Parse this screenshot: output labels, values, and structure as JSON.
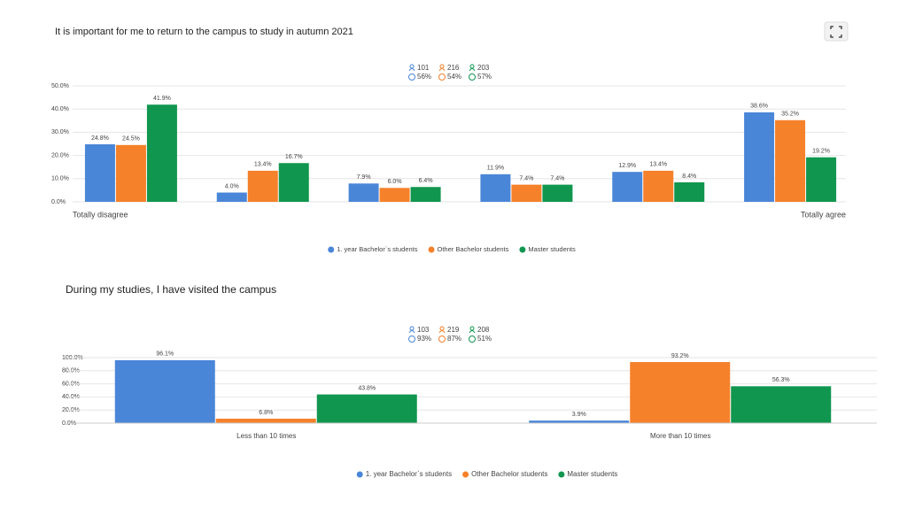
{
  "chart_data": [
    {
      "type": "bar",
      "title": "It is important for me to return to the campus to study in autumn 2021",
      "categories": [
        "Totally disagree",
        null,
        null,
        null,
        null,
        "Totally agree"
      ],
      "series": [
        {
          "name": "1. year Bachelor`s students",
          "color": "#4a86d8",
          "respondents": 101,
          "response_rate": {
            "value": 56,
            "label": "56%"
          },
          "values": [
            24.8,
            4.0,
            7.9,
            11.9,
            12.9,
            38.6
          ],
          "value_labels": [
            "24.8%",
            "4.0%",
            "7.9%",
            "11.9%",
            "12.9%",
            "38.6%"
          ]
        },
        {
          "name": "Other Bachelor students",
          "color": "#f5812a",
          "respondents": 216,
          "response_rate": {
            "value": 54,
            "label": "54%"
          },
          "values": [
            24.5,
            13.4,
            6.0,
            7.4,
            13.4,
            35.2
          ],
          "value_labels": [
            "24.5%",
            "13.4%",
            "6.0%",
            "7.4%",
            "13.4%",
            "35.2%"
          ]
        },
        {
          "name": "Master students",
          "color": "#10964f",
          "respondents": 203,
          "response_rate": {
            "value": 57,
            "label": "57%"
          },
          "values": [
            41.9,
            16.7,
            6.4,
            7.4,
            8.4,
            19.2
          ],
          "value_labels": [
            "41.9%",
            "16.7%",
            "6.4%",
            "7.4%",
            "8.4%",
            "19.2%"
          ]
        }
      ],
      "ylim": [
        0,
        50
      ],
      "yticks": [
        {
          "value": 0,
          "label": "0.0%"
        },
        {
          "value": 10,
          "label": "10.0%"
        },
        {
          "value": 20,
          "label": "20.0%"
        },
        {
          "value": 30,
          "label": "30.0%"
        },
        {
          "value": 40,
          "label": "40.0%"
        },
        {
          "value": 50,
          "label": "50.0%"
        }
      ],
      "grid": true
    },
    {
      "type": "bar",
      "title": "During my studies, I have visited the campus",
      "categories": [
        "Less than 10 times",
        "More than 10 times"
      ],
      "series": [
        {
          "name": "1. year Bachelor`s students",
          "color": "#4a86d8",
          "respondents": 103,
          "response_rate": {
            "value": 93,
            "label": "93%"
          },
          "values": [
            96.1,
            3.9
          ],
          "value_labels": [
            "96.1%",
            "3.9%"
          ]
        },
        {
          "name": "Other Bachelor students",
          "color": "#f5812a",
          "respondents": 219,
          "response_rate": {
            "value": 87,
            "label": "87%"
          },
          "values": [
            6.8,
            93.2
          ],
          "value_labels": [
            "6.8%",
            "93.2%"
          ]
        },
        {
          "name": "Master students",
          "color": "#10964f",
          "respondents": 208,
          "response_rate": {
            "value": 51,
            "label": "51%"
          },
          "values": [
            43.8,
            56.3
          ],
          "value_labels": [
            "43.8%",
            "56.3%"
          ]
        }
      ],
      "ylim": [
        0,
        100
      ],
      "yticks": [
        {
          "value": 0,
          "label": "0.0%"
        },
        {
          "value": 20,
          "label": "20.0%"
        },
        {
          "value": 40,
          "label": "40.0%"
        },
        {
          "value": 60,
          "label": "60.0%"
        },
        {
          "value": 80,
          "label": "80.0%"
        },
        {
          "value": 100,
          "label": "100.0%"
        }
      ],
      "grid": true
    }
  ]
}
